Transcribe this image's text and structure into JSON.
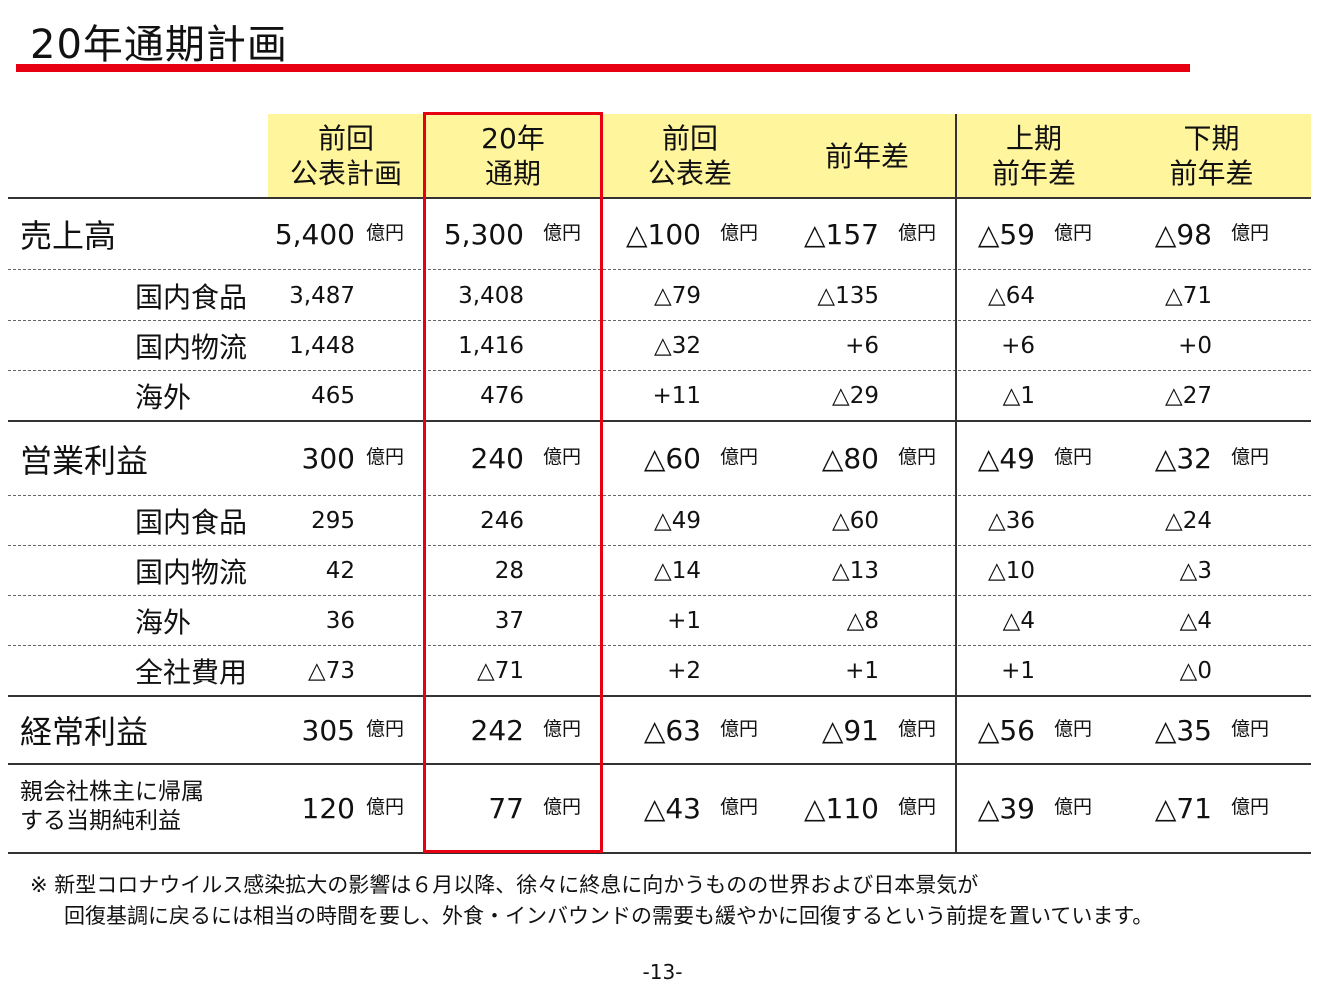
{
  "title": "20年通期計画",
  "headers": [
    {
      "l1": "前回",
      "l2": "公表計画"
    },
    {
      "l1": "20年",
      "l2": "通期"
    },
    {
      "l1": "前回",
      "l2": "公表差"
    },
    {
      "l1": "前年差",
      "l2": ""
    },
    {
      "l1": "上期",
      "l2": "前年差"
    },
    {
      "l1": "下期",
      "l2": "前年差"
    }
  ],
  "rows": [
    {
      "label": "売上高",
      "type": "major",
      "unit": "億円",
      "values": [
        "5,400",
        "5,300",
        "△100",
        "△157",
        "△59",
        "△98"
      ]
    },
    {
      "label": "国内食品",
      "type": "sub",
      "values": [
        "3,487",
        "3,408",
        "△79",
        "△135",
        "△64",
        "△71"
      ]
    },
    {
      "label": "国内物流",
      "type": "sub",
      "values": [
        "1,448",
        "1,416",
        "△32",
        "+6",
        "+6",
        "+0"
      ]
    },
    {
      "label": "海外",
      "type": "sub",
      "values": [
        "465",
        "476",
        "+11",
        "△29",
        "△1",
        "△27"
      ]
    },
    {
      "label": "営業利益",
      "type": "major",
      "unit": "億円",
      "values": [
        "300",
        "240",
        "△60",
        "△80",
        "△49",
        "△32"
      ]
    },
    {
      "label": "国内食品",
      "type": "sub",
      "values": [
        "295",
        "246",
        "△49",
        "△60",
        "△36",
        "△24"
      ]
    },
    {
      "label": "国内物流",
      "type": "sub",
      "values": [
        "42",
        "28",
        "△14",
        "△13",
        "△10",
        "△3"
      ]
    },
    {
      "label": "海外",
      "type": "sub",
      "values": [
        "36",
        "37",
        "+1",
        "△8",
        "△4",
        "△4"
      ]
    },
    {
      "label": "全社費用",
      "type": "sub",
      "values": [
        "△73",
        "△71",
        "+2",
        "+1",
        "+1",
        "△0"
      ]
    },
    {
      "label": "経常利益",
      "type": "major",
      "unit": "億円",
      "values": [
        "305",
        "242",
        "△63",
        "△91",
        "△56",
        "△35"
      ]
    },
    {
      "label": "親会社株主に帰属する当期純利益",
      "label_l1": "親会社株主に帰属",
      "label_l2": "する当期純利益",
      "type": "major-small",
      "unit": "億円",
      "values": [
        "120",
        "77",
        "△43",
        "△110",
        "△39",
        "△71"
      ]
    }
  ],
  "notes": {
    "line1": "※ 新型コロナウイルス感染拡大の影響は６月以降、徐々に終息に向かうものの世界および日本景気が",
    "line2": "回復基調に戻るには相当の時間を要し、外食・インバウンドの需要も緩やかに回復するという前提を置いています。"
  },
  "page_number": "-13-",
  "colors": {
    "accent": "#e60012",
    "header_bg": "#fff59d"
  }
}
